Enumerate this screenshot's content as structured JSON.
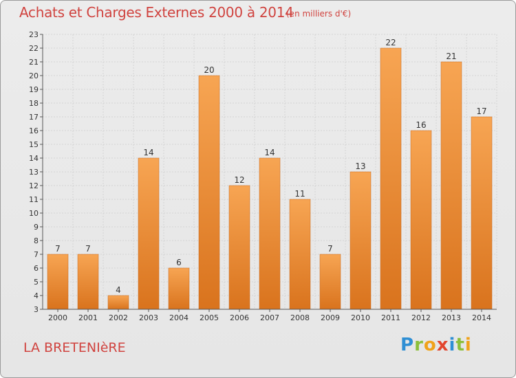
{
  "header": {
    "title": "Achats et Charges Externes 2000 à 2014",
    "subtitle": "(en milliers d'€)"
  },
  "footer": {
    "place": "LA BRETENIèRE",
    "logo": "Proxiti"
  },
  "colors": {
    "bar_light": "#f7a553",
    "bar_dark": "#d9731d",
    "title": "#d0433f"
  },
  "chart_data": {
    "type": "bar",
    "categories": [
      "2000",
      "2001",
      "2002",
      "2003",
      "2004",
      "2005",
      "2006",
      "2007",
      "2008",
      "2009",
      "2010",
      "2011",
      "2012",
      "2013",
      "2014"
    ],
    "values": [
      7,
      7,
      4,
      14,
      6,
      20,
      12,
      14,
      11,
      7,
      13,
      22,
      16,
      21,
      17
    ],
    "ylim": [
      3,
      23
    ],
    "yticks": [
      3,
      4,
      5,
      6,
      7,
      8,
      9,
      10,
      11,
      12,
      13,
      14,
      15,
      16,
      17,
      18,
      19,
      20,
      21,
      22,
      23
    ],
    "grid": true,
    "xlabel": "",
    "ylabel": ""
  }
}
